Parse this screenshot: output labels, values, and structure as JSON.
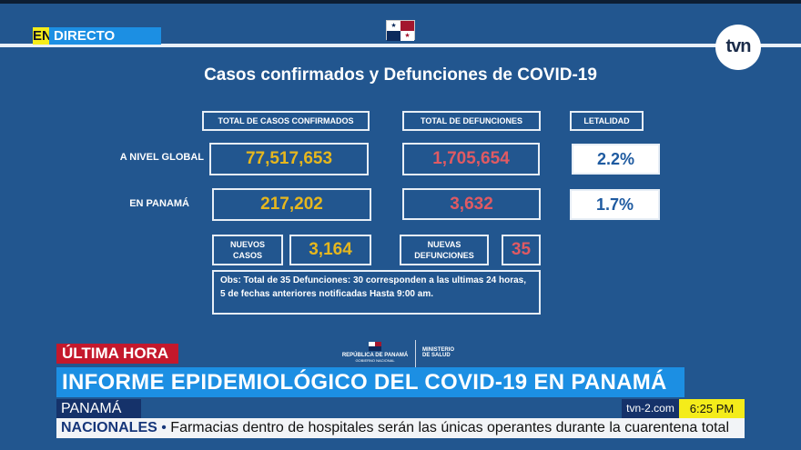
{
  "live": {
    "en": "EN",
    "directo": "DIRECTO"
  },
  "logo": "tvn",
  "title": "Casos confirmados y Defunciones de COVID-19",
  "headers": {
    "cases": "TOTAL DE CASOS CONFIRMADOS",
    "deaths": "TOTAL DE DEFUNCIONES",
    "lethality": "LETALIDAD"
  },
  "rows": [
    {
      "label": "A NIVEL GLOBAL",
      "cases": "77,517,653",
      "deaths": "1,705,654",
      "lethality": "2.2%"
    },
    {
      "label": "EN PANAMÁ",
      "cases": "217,202",
      "deaths": "3,632",
      "lethality": "1.7%"
    }
  ],
  "new": {
    "cases_label_1": "NUEVOS",
    "cases_label_2": "CASOS",
    "cases": "3,164",
    "deaths_label_1": "NUEVAS",
    "deaths_label_2": "DEFUNCIONES",
    "deaths": "35"
  },
  "obs": "Obs: Total de 35 Defunciones: 30 corresponden a las ultimas 24 horas, 5 de fechas anteriores notificadas   Hasta 9:00 am.",
  "ministry": {
    "republic": "REPÚBLICA DE PANAMÁ",
    "gov": "GOBIERNO NACIONAL",
    "ministry_1": "MINISTERIO",
    "ministry_2": "DE SALUD"
  },
  "lower_third": {
    "breaking": "ÚLTIMA HORA",
    "headline": "INFORME EPIDEMIOLÓGICO DEL COVID-19 EN PANAMÁ",
    "location": "PANAMÁ",
    "site": "tvn-2.com",
    "time": "6:25 PM",
    "ticker_category": "NACIONALES",
    "ticker_text": "Farmacias dentro de hospitales serán las únicas operantes durante la cuarentena total"
  },
  "colors": {
    "background": "#22568f",
    "cases": "#e6b71e",
    "deaths": "#e05a63",
    "breaking": "#c4182c",
    "headline": "#1c8fe3",
    "clock": "#f4ec1a"
  }
}
